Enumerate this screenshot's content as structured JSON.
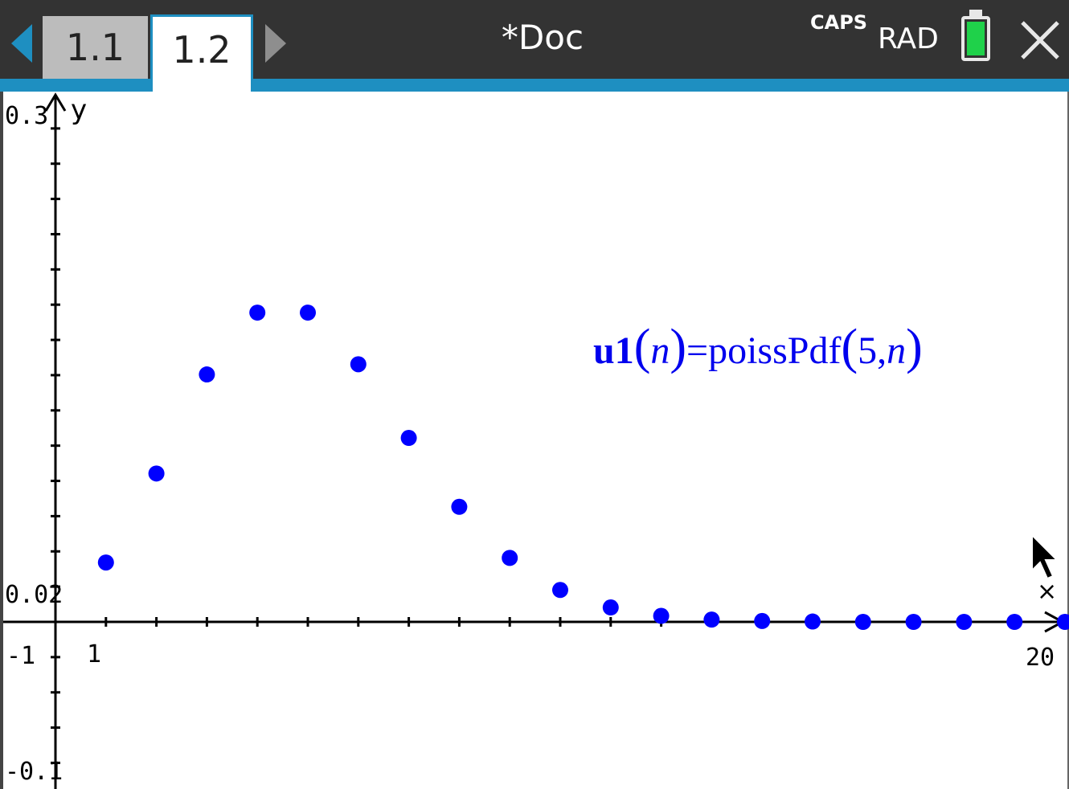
{
  "tabs": [
    {
      "label": "1.1",
      "active": false
    },
    {
      "label": "1.2",
      "active": true
    }
  ],
  "document": {
    "title": "*Doc"
  },
  "status": {
    "caps": "CAPS",
    "angle_mode": "RAD",
    "battery_color": "#1fd14a"
  },
  "accent_color": "#1e8fc1",
  "graph": {
    "y_axis_label": "y",
    "x_axis_marker": "×",
    "ymax_label": "0.3",
    "yscale_label": "0.02",
    "xmin_label": "-1",
    "xscale_label": "1",
    "xmax_label": "20",
    "ymin_label": "-0.1",
    "function_name": "u1",
    "function_arg": "n",
    "function_expr": "=poissPdf",
    "function_params": "5,",
    "function_color": "#0000ff"
  },
  "chart_data": {
    "type": "scatter",
    "x": [
      1,
      2,
      3,
      4,
      5,
      6,
      7,
      8,
      9,
      10,
      11,
      12,
      13,
      14,
      15,
      16,
      17,
      18,
      19,
      20
    ],
    "y": [
      0.0337,
      0.0842,
      0.1404,
      0.1755,
      0.1755,
      0.1462,
      0.1044,
      0.0653,
      0.0363,
      0.0181,
      0.0082,
      0.0034,
      0.0013,
      0.0005,
      0.0002,
      0.0,
      0.0,
      0.0,
      0.0,
      0.0
    ],
    "xlim": [
      -1,
      20
    ],
    "ylim": [
      -0.1,
      0.3
    ],
    "xscale": 1,
    "yscale": 0.02,
    "grid": false,
    "color": "#0000ff"
  }
}
